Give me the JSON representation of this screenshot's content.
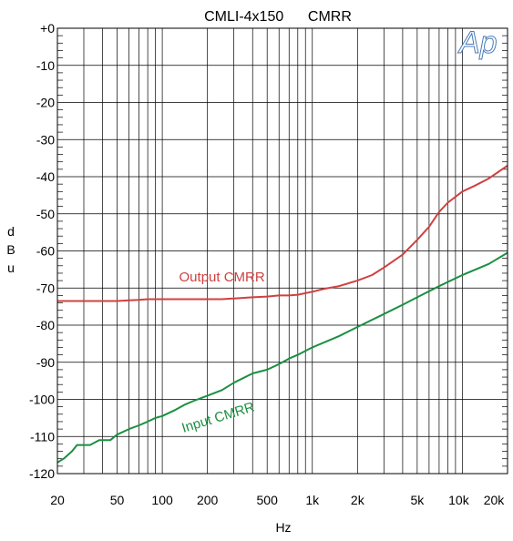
{
  "chart_data": {
    "type": "line",
    "title": "CMLI-4x150      CMRR",
    "xlabel": "Hz",
    "ylabel": "dBu",
    "x_scale": "log",
    "xlim": [
      20,
      20000
    ],
    "ylim": [
      -120,
      0
    ],
    "grid": true,
    "x_ticks": [
      {
        "value": 20,
        "label": "20"
      },
      {
        "value": 50,
        "label": "50"
      },
      {
        "value": 100,
        "label": "100"
      },
      {
        "value": 200,
        "label": "200"
      },
      {
        "value": 500,
        "label": "500"
      },
      {
        "value": 1000,
        "label": "1k"
      },
      {
        "value": 2000,
        "label": "2k"
      },
      {
        "value": 5000,
        "label": "5k"
      },
      {
        "value": 10000,
        "label": "10k"
      },
      {
        "value": 20000,
        "label": "20k"
      }
    ],
    "y_ticks": [
      {
        "value": 0,
        "label": "+0"
      },
      {
        "value": -10,
        "label": "-10"
      },
      {
        "value": -20,
        "label": "-20"
      },
      {
        "value": -30,
        "label": "-30"
      },
      {
        "value": -40,
        "label": "-40"
      },
      {
        "value": -50,
        "label": "-50"
      },
      {
        "value": -60,
        "label": "-60"
      },
      {
        "value": -70,
        "label": "-70"
      },
      {
        "value": -80,
        "label": "-80"
      },
      {
        "value": -90,
        "label": "-90"
      },
      {
        "value": -100,
        "label": "-100"
      },
      {
        "value": -110,
        "label": "-110"
      },
      {
        "value": -120,
        "label": "-120"
      }
    ],
    "series": [
      {
        "name": "Output CMRR",
        "color": "#d04040",
        "points": [
          [
            20,
            -73.5
          ],
          [
            30,
            -73.5
          ],
          [
            50,
            -73.5
          ],
          [
            60,
            -73.3
          ],
          [
            70,
            -73.2
          ],
          [
            80,
            -73.0
          ],
          [
            100,
            -73.0
          ],
          [
            150,
            -73.0
          ],
          [
            200,
            -73.0
          ],
          [
            250,
            -73.0
          ],
          [
            300,
            -72.8
          ],
          [
            400,
            -72.5
          ],
          [
            500,
            -72.3
          ],
          [
            600,
            -72.0
          ],
          [
            700,
            -72.0
          ],
          [
            800,
            -71.8
          ],
          [
            1000,
            -71.0
          ],
          [
            1200,
            -70.2
          ],
          [
            1500,
            -69.5
          ],
          [
            2000,
            -68.0
          ],
          [
            2500,
            -66.5
          ],
          [
            3000,
            -64.5
          ],
          [
            4000,
            -61.0
          ],
          [
            5000,
            -57.0
          ],
          [
            6000,
            -53.5
          ],
          [
            7000,
            -49.5
          ],
          [
            8000,
            -47.0
          ],
          [
            10000,
            -44.0
          ],
          [
            12000,
            -42.5
          ],
          [
            15000,
            -40.5
          ],
          [
            20000,
            -37.0
          ]
        ]
      },
      {
        "name": "Input CMRR",
        "color": "#1a9040",
        "points": [
          [
            20,
            -117.0
          ],
          [
            22,
            -116.0
          ],
          [
            25,
            -114.0
          ],
          [
            27,
            -112.3
          ],
          [
            33,
            -112.3
          ],
          [
            38,
            -111.0
          ],
          [
            45,
            -111.0
          ],
          [
            50,
            -109.5
          ],
          [
            60,
            -108.0
          ],
          [
            70,
            -107.0
          ],
          [
            80,
            -106.0
          ],
          [
            90,
            -105.0
          ],
          [
            100,
            -104.5
          ],
          [
            120,
            -103.0
          ],
          [
            140,
            -101.5
          ],
          [
            160,
            -100.5
          ],
          [
            200,
            -99.0
          ],
          [
            250,
            -97.5
          ],
          [
            300,
            -95.5
          ],
          [
            400,
            -93.0
          ],
          [
            500,
            -92.0
          ],
          [
            600,
            -90.5
          ],
          [
            700,
            -89.0
          ],
          [
            800,
            -88.0
          ],
          [
            1000,
            -86.0
          ],
          [
            1500,
            -83.0
          ],
          [
            2000,
            -80.5
          ],
          [
            3000,
            -77.0
          ],
          [
            4000,
            -74.5
          ],
          [
            5000,
            -72.5
          ],
          [
            7000,
            -69.5
          ],
          [
            10000,
            -66.5
          ],
          [
            15000,
            -63.5
          ],
          [
            20000,
            -60.5
          ]
        ]
      }
    ],
    "annotations": [
      {
        "text": "Output CMRR",
        "color": "#d04040"
      },
      {
        "text": "Input CMRR",
        "color": "#1a9040"
      }
    ],
    "logo": "Ap"
  }
}
